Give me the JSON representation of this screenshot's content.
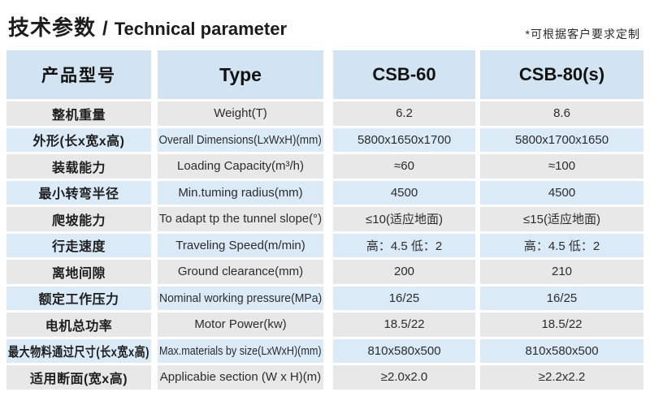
{
  "header": {
    "title_zh": "技术参数",
    "title_separator": "/",
    "title_en": "Technical parameter",
    "note": "*可根据客户要求定制"
  },
  "table": {
    "columns": {
      "label_zh": "产品型号",
      "label_en": "Type",
      "model_1": "CSB-60",
      "model_2": "CSB-80(s)"
    },
    "rows": [
      {
        "zh": "整机重量",
        "en": "Weight(T)",
        "v1": "6.2",
        "v2": "8.6"
      },
      {
        "zh": "外形(长x宽x高)",
        "en": "Overall Dimensions(LxWxH)(mm)",
        "v1": "5800x1650x1700",
        "v2": "5800x1700x1650"
      },
      {
        "zh": "装载能力",
        "en": "Loading Capacity(m³/h)",
        "v1": "≈60",
        "v2": "≈100"
      },
      {
        "zh": "最小转弯半径",
        "en": "Min.tuming radius(mm)",
        "v1": "4500",
        "v2": "4500"
      },
      {
        "zh": "爬坡能力",
        "en": "To adapt tp the tunnel slope(°)",
        "v1": "≤10(适应地面)",
        "v2": "≤15(适应地面)"
      },
      {
        "zh": "行走速度",
        "en": "Traveling Speed(m/min)",
        "v1": "高：4.5 低：2",
        "v2": "高：4.5 低：2"
      },
      {
        "zh": "离地间隙",
        "en": "Ground clearance(mm)",
        "v1": "200",
        "v2": "210"
      },
      {
        "zh": "额定工作压力",
        "en": "Nominal working pressure(MPa)",
        "v1": "16/25",
        "v2": "16/25"
      },
      {
        "zh": "电机总功率",
        "en": "Motor Power(kw)",
        "v1": "18.5/22",
        "v2": "18.5/22"
      },
      {
        "zh": "最大物料通过尺寸(长x宽x高)",
        "en": "Max.materials by size(LxWxH)(mm)",
        "v1": "810x580x500",
        "v2": "810x580x500"
      },
      {
        "zh": "适用断面(宽x高)",
        "en": "Applicabie section (W x H)(m)",
        "v1": "≥2.0x2.0",
        "v2": "≥2.2x2.2"
      }
    ]
  },
  "colors": {
    "header_bg": "#d2e4f1",
    "row_blue": "#daebf7",
    "row_gray": "#e8e8e8",
    "text": "#2b2b2b"
  }
}
